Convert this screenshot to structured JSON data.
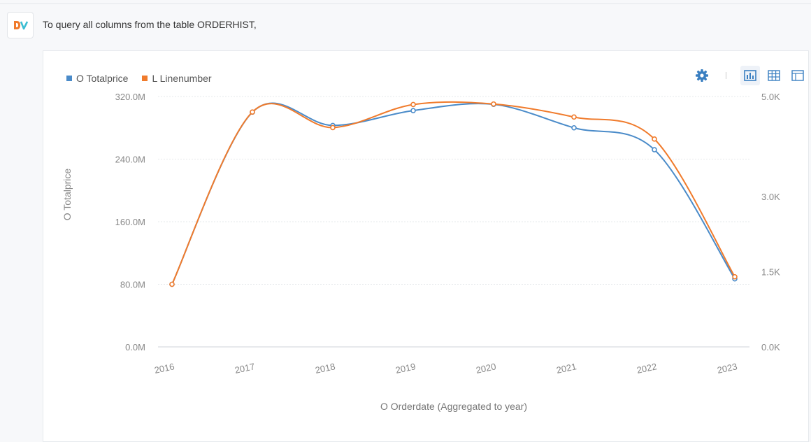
{
  "message": {
    "text": "To query all columns from the table ORDERHIST,",
    "avatar_icon": "dv-logo-icon"
  },
  "toolbar": {
    "settings_icon": "gear-icon",
    "chart_view_icon": "bar-chart-icon",
    "table_view_icon": "grid-table-icon",
    "pivot_view_icon": "layout-table-icon"
  },
  "colors": {
    "series1": "#4a8bc9",
    "series2": "#f07b2c",
    "accent": "#3a7fc1"
  },
  "chart_data": {
    "type": "line",
    "x": [
      "2016",
      "2017",
      "2018",
      "2019",
      "2020",
      "2021",
      "2022",
      "2023"
    ],
    "xlabel": "O Orderdate (Aggregated to year)",
    "ylabel": "O Totalprice",
    "y_ticks": [
      "0.0M",
      "80.0M",
      "160.0M",
      "240.0M",
      "320.0M"
    ],
    "y_range": [
      0,
      320000000
    ],
    "y2_ticks": [
      "0.0K",
      "1.5K",
      "3.0K",
      "5.0K"
    ],
    "y2_range": [
      0,
      5000
    ],
    "grid": true,
    "legend_position": "top-left",
    "series": [
      {
        "name": "O Totalprice",
        "axis": "left",
        "values": [
          80000000,
          300000000,
          283000000,
          302000000,
          310000000,
          280000000,
          252000000,
          87000000
        ]
      },
      {
        "name": "L Linenumber",
        "axis": "right",
        "values": [
          1250,
          4690,
          4380,
          4840,
          4850,
          4590,
          4150,
          1400
        ]
      }
    ]
  }
}
